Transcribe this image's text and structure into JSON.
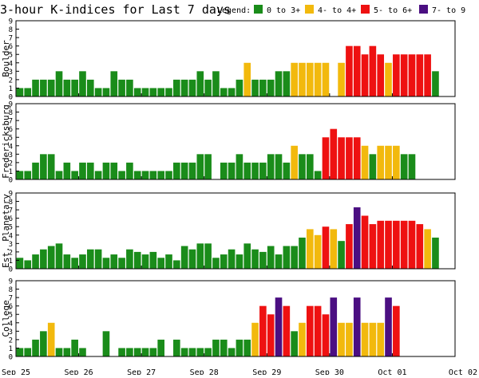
{
  "title": "3-hour K-indices for Last 7 days",
  "legend": {
    "label": "Legend:",
    "items": [
      {
        "text": "0 to 3+",
        "color": "#1a8c1a"
      },
      {
        "text": "4- to 4+",
        "color": "#f2b90d"
      },
      {
        "text": "5- to 6+",
        "color": "#ee1111"
      },
      {
        "text": "7- to 9",
        "color": "#4b0f82"
      }
    ]
  },
  "x_tick_labels": [
    "Sep 25",
    "Sep 26",
    "Sep 27",
    "Sep 28",
    "Sep 29",
    "Sep 30",
    "Oct 01",
    "Oct 02"
  ],
  "colors": {
    "green": "#1a8c1a",
    "yellow": "#f2b90d",
    "red": "#ee1111",
    "purple": "#4b0f82",
    "frame": "#000000"
  },
  "chart_data": [
    {
      "type": "bar",
      "ylabel": "Boulder",
      "ylim": [
        0,
        9
      ],
      "y_ticks": [
        0,
        1,
        2,
        3,
        4,
        5,
        6,
        7,
        8,
        9
      ],
      "values": [
        1,
        1,
        2,
        2,
        2,
        3,
        2,
        2,
        3,
        2,
        1,
        1,
        3,
        2,
        2,
        1,
        1,
        1,
        1,
        1,
        2,
        2,
        2,
        3,
        2,
        3,
        1,
        1,
        2,
        4,
        2,
        2,
        2,
        3,
        3,
        4,
        4,
        4,
        4,
        4,
        0,
        4,
        6,
        6,
        5,
        6,
        5,
        4,
        5,
        5,
        5,
        5,
        5,
        3,
        0,
        0,
        0
      ]
    },
    {
      "type": "bar",
      "ylabel": "Fredericksburg",
      "ylim": [
        0,
        9
      ],
      "y_ticks": [
        0,
        1,
        2,
        3,
        4,
        5,
        6,
        7,
        8,
        9
      ],
      "values": [
        1,
        1,
        2,
        3,
        3,
        1,
        2,
        1,
        2,
        2,
        1,
        2,
        2,
        1,
        2,
        1,
        1,
        1,
        1,
        1,
        2,
        2,
        2,
        3,
        3,
        0,
        2,
        2,
        3,
        2,
        2,
        2,
        3,
        3,
        2,
        4,
        3,
        3,
        1,
        5,
        6,
        5,
        5,
        5,
        4,
        3,
        4,
        4,
        4,
        3,
        3,
        0,
        0,
        0
      ]
    },
    {
      "type": "bar",
      "ylabel": "Est. Planetary",
      "ylim": [
        0,
        9
      ],
      "y_ticks": [
        0,
        1,
        2,
        3,
        4,
        5,
        6,
        7,
        8,
        9
      ],
      "values": [
        1.3,
        1.0,
        1.7,
        2.3,
        2.7,
        3.0,
        1.7,
        1.3,
        1.7,
        2.3,
        2.3,
        1.3,
        1.7,
        1.3,
        2.3,
        2.0,
        1.7,
        2.0,
        1.3,
        1.7,
        1.0,
        2.7,
        2.3,
        3.0,
        3.0,
        1.3,
        1.7,
        2.3,
        1.7,
        3.0,
        2.3,
        2.0,
        2.7,
        1.7,
        2.7,
        2.7,
        3.7,
        4.7,
        4.0,
        5.0,
        4.7,
        3.3,
        5.3,
        7.3,
        6.3,
        5.3,
        5.7,
        5.7,
        5.7,
        5.7,
        5.7,
        5.3,
        4.7,
        3.7
      ]
    },
    {
      "type": "bar",
      "ylabel": "College",
      "ylim": [
        0,
        9
      ],
      "y_ticks": [
        0,
        1,
        2,
        3,
        4,
        5,
        6,
        7,
        8,
        9
      ],
      "values": [
        1,
        1,
        2,
        3,
        4,
        1,
        1,
        2,
        1,
        0,
        0,
        3,
        0,
        1,
        1,
        1,
        1,
        1,
        2,
        0,
        2,
        1,
        1,
        1,
        1,
        2,
        2,
        1,
        2,
        2,
        4,
        6,
        5,
        7,
        6,
        3,
        4,
        6,
        6,
        5,
        7,
        4,
        4,
        7,
        4,
        4,
        4,
        7,
        6,
        0,
        0,
        0
      ]
    }
  ]
}
